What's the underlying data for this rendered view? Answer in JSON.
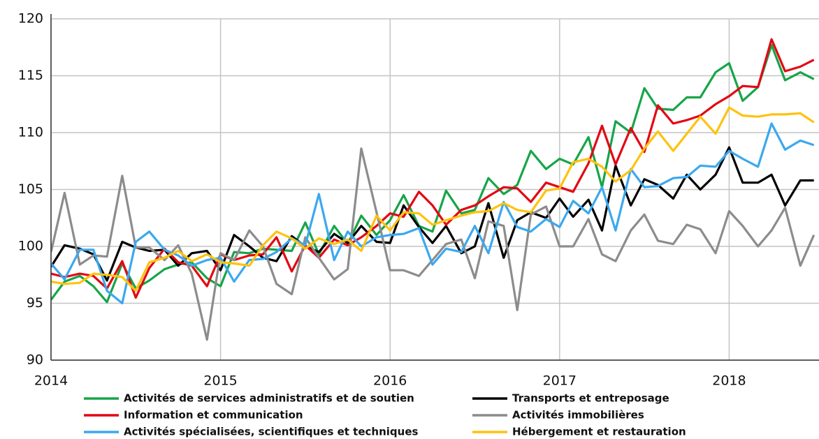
{
  "chart_data": {
    "type": "line",
    "x": [
      2014,
      2014.08,
      2014.17,
      2014.25,
      2014.33,
      2014.42,
      2014.5,
      2014.58,
      2014.67,
      2014.75,
      2014.83,
      2014.92,
      2015,
      2015.08,
      2015.17,
      2015.25,
      2015.33,
      2015.42,
      2015.5,
      2015.58,
      2015.67,
      2015.75,
      2015.83,
      2015.92,
      2016,
      2016.08,
      2016.17,
      2016.25,
      2016.33,
      2016.42,
      2016.5,
      2016.58,
      2016.67,
      2016.75,
      2016.83,
      2016.92,
      2017,
      2017.08,
      2017.17,
      2017.25,
      2017.33,
      2017.42,
      2017.5,
      2017.58,
      2017.67,
      2017.75,
      2017.83,
      2017.92,
      2018,
      2018.08,
      2018.17,
      2018.25,
      2018.33,
      2018.42,
      2018.5
    ],
    "series": [
      {
        "name": "Activités de services administratifs et de soutien",
        "color": "#17a548",
        "values": [
          95.3,
          96.9,
          97.4,
          96.5,
          95.1,
          98.5,
          96.3,
          97.0,
          98.0,
          98.4,
          98.6,
          97.2,
          96.5,
          99.5,
          99.4,
          99.8,
          99.7,
          99.6,
          102.1,
          99.3,
          101.8,
          100.2,
          102.7,
          101.0,
          102.3,
          104.5,
          101.8,
          101.3,
          104.9,
          102.9,
          103.2,
          106.0,
          104.6,
          105.4,
          108.4,
          106.8,
          107.7,
          107.2,
          109.6,
          105.2,
          111.0,
          110.0,
          113.9,
          112.1,
          112.0,
          113.1,
          113.1,
          115.3,
          116.1,
          112.8,
          114.0,
          117.7,
          114.6,
          115.3,
          114.7
        ]
      },
      {
        "name": "Transports et entreposage",
        "color": "#000000",
        "values": [
          98.2,
          100.1,
          99.8,
          99.3,
          97.0,
          100.4,
          99.9,
          99.6,
          99.7,
          98.3,
          99.4,
          99.6,
          97.9,
          101.0,
          100.0,
          99.0,
          98.7,
          100.9,
          100.0,
          99.5,
          101.1,
          100.3,
          101.8,
          100.4,
          100.3,
          103.6,
          101.7,
          100.3,
          101.8,
          99.4,
          100.0,
          103.8,
          99.0,
          102.3,
          103.0,
          102.5,
          104.2,
          102.6,
          104.1,
          101.4,
          107.1,
          103.6,
          105.9,
          105.4,
          104.2,
          106.3,
          105.0,
          106.3,
          108.7,
          105.6,
          105.6,
          106.3,
          103.6,
          105.8,
          105.8
        ]
      },
      {
        "name": "Information et communication",
        "color": "#e30613",
        "values": [
          97.6,
          97.3,
          97.6,
          97.4,
          96.3,
          98.7,
          95.5,
          98.1,
          99.8,
          98.6,
          98.3,
          96.5,
          99.3,
          98.8,
          99.2,
          99.3,
          100.8,
          97.8,
          100.1,
          99.0,
          100.6,
          100.1,
          100.8,
          101.8,
          102.9,
          102.6,
          104.8,
          103.6,
          101.9,
          103.2,
          103.6,
          104.4,
          105.2,
          105.1,
          103.9,
          105.6,
          105.2,
          104.8,
          107.3,
          110.6,
          107.2,
          110.4,
          108.3,
          112.4,
          110.8,
          111.1,
          111.5,
          112.5,
          113.2,
          114.1,
          114.0,
          118.2,
          115.4,
          115.8,
          116.4
        ]
      },
      {
        "name": "Activités immobilières",
        "color": "#8c8c8c",
        "values": [
          99.5,
          104.7,
          98.4,
          99.2,
          99.1,
          106.2,
          99.9,
          99.9,
          98.8,
          100.1,
          97.6,
          91.8,
          99.4,
          98.8,
          101.4,
          100.0,
          96.7,
          95.8,
          100.8,
          99.0,
          97.1,
          98.0,
          108.6,
          103.0,
          97.9,
          97.9,
          97.4,
          98.8,
          100.2,
          100.6,
          97.2,
          102.2,
          101.8,
          94.4,
          102.8,
          103.5,
          100.0,
          100.0,
          102.4,
          99.3,
          98.7,
          101.4,
          102.8,
          100.5,
          100.2,
          101.9,
          101.5,
          99.4,
          103.1,
          101.8,
          100.0,
          101.4,
          103.4,
          98.3,
          101.0
        ]
      },
      {
        "name": "Activités spécialisées, scientifiques et techniques",
        "color": "#3ba8ef",
        "values": [
          98.5,
          97.1,
          99.7,
          99.7,
          96.1,
          95.0,
          100.4,
          101.3,
          99.7,
          99.2,
          98.3,
          98.8,
          99.0,
          96.9,
          98.8,
          98.9,
          99.5,
          100.7,
          100.1,
          104.6,
          98.8,
          101.3,
          100.0,
          100.8,
          101.0,
          101.1,
          101.6,
          98.4,
          99.8,
          99.5,
          101.8,
          99.4,
          103.9,
          101.7,
          101.3,
          102.4,
          101.7,
          104.0,
          102.9,
          105.2,
          101.4,
          106.8,
          105.2,
          105.3,
          106.0,
          106.1,
          107.1,
          107.0,
          108.4,
          107.7,
          107.0,
          110.8,
          108.5,
          109.3,
          108.9
        ]
      },
      {
        "name": "Hébergement et restauration",
        "color": "#ffc20e",
        "values": [
          96.9,
          96.7,
          96.8,
          97.6,
          97.5,
          97.3,
          96.1,
          98.6,
          99.0,
          99.6,
          98.7,
          99.3,
          98.6,
          98.5,
          98.3,
          100.1,
          101.3,
          100.7,
          99.8,
          100.7,
          100.2,
          100.6,
          99.6,
          102.7,
          101.4,
          103.0,
          102.9,
          101.9,
          102.3,
          102.7,
          103.0,
          103.1,
          103.8,
          103.2,
          103.0,
          104.9,
          105.1,
          107.4,
          107.7,
          107.0,
          105.7,
          106.7,
          108.6,
          110.1,
          108.4,
          109.9,
          111.4,
          109.9,
          112.2,
          111.5,
          111.4,
          111.6,
          111.6,
          111.7,
          110.9
        ]
      }
    ],
    "xlim": [
      2014,
      2018.53
    ],
    "xticks": [
      2014,
      2015,
      2016,
      2017,
      2018
    ],
    "ylim": [
      90,
      120
    ],
    "yticks": [
      90,
      95,
      100,
      105,
      110,
      115,
      120
    ],
    "grid": true,
    "legend": "bottom"
  }
}
